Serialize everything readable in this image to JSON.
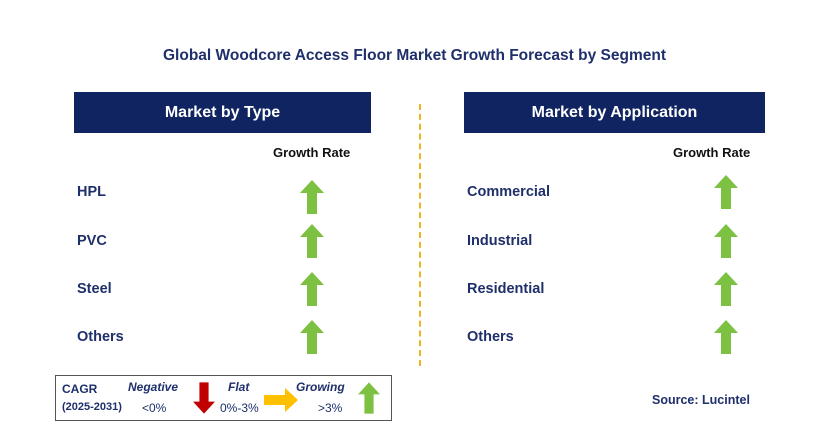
{
  "title": "Global Woodcore Access Floor Market Growth Forecast by Segment",
  "left_panel": {
    "header": "Market by Type",
    "growth_label": "Growth Rate",
    "items": [
      {
        "label": "HPL",
        "trend": "up"
      },
      {
        "label": "PVC",
        "trend": "up"
      },
      {
        "label": "Steel",
        "trend": "up"
      },
      {
        "label": "Others",
        "trend": "up"
      }
    ]
  },
  "right_panel": {
    "header": "Market by Application",
    "growth_label": "Growth Rate",
    "items": [
      {
        "label": "Commercial",
        "trend": "up"
      },
      {
        "label": "Industrial",
        "trend": "up"
      },
      {
        "label": "Residential",
        "trend": "up"
      },
      {
        "label": "Others",
        "trend": "up"
      }
    ]
  },
  "legend": {
    "cagr": "CAGR",
    "period": "(2025-2031)",
    "negative_label": "Negative",
    "negative_value": "<0%",
    "flat_label": "Flat",
    "flat_value": "0%-3%",
    "growing_label": "Growing",
    "growing_value": ">3%"
  },
  "source": "Source: Lucintel",
  "colors": {
    "header_bg": "#0f2460",
    "title_text": "#1f2f6b",
    "up_arrow": "#7cc142",
    "down_arrow": "#c00000",
    "flat_arrow": "#ffc000",
    "divider": "#f0b323"
  }
}
